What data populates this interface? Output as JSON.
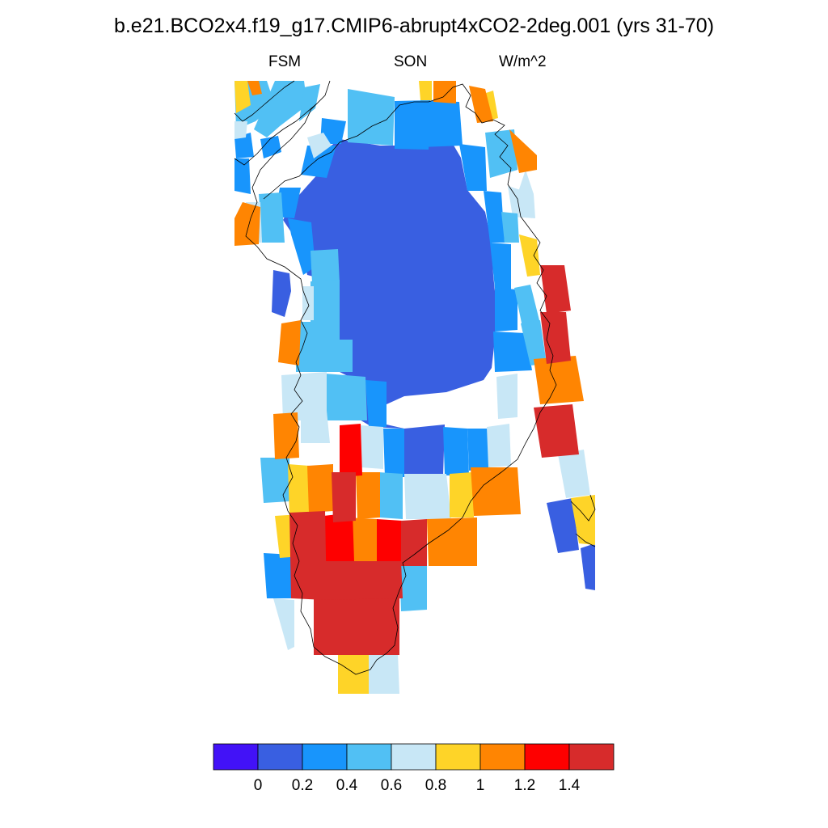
{
  "title": "b.e21.BCO2x4.f19_g17.CMIP6-abrupt4xCO2-2deg.001 (yrs 31-70)",
  "subtitle_left": "FSM",
  "subtitle_center": "SON",
  "subtitle_right": "W/m^2",
  "colorbar": {
    "colors": [
      "#4212f7",
      "#395fe1",
      "#1895fc",
      "#51c0f4",
      "#c8e7f6",
      "#fed428",
      "#ff8502",
      "#fe0000",
      "#d72b2b"
    ],
    "tick_labels": [
      "0",
      "0.2",
      "0.4",
      "0.6",
      "0.8",
      "1",
      "1.2",
      "1.4"
    ]
  },
  "map": {
    "region": "Greenland",
    "field": "FSM",
    "season": "SON",
    "units": "W/m^2",
    "legend": "bottom"
  }
}
